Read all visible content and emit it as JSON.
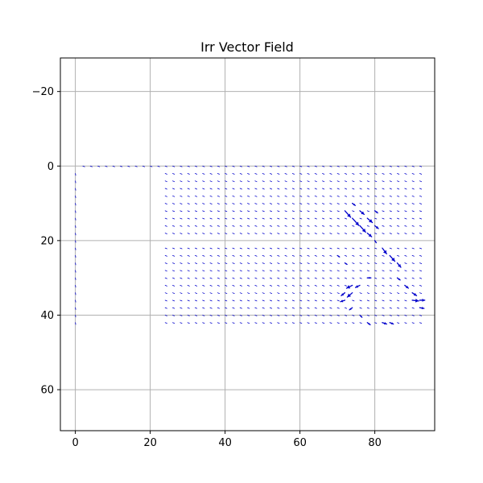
{
  "chart_data": {
    "type": "quiver",
    "title": "Irr Vector Field",
    "xlabel": "",
    "ylabel": "",
    "xlim": [
      -4,
      96
    ],
    "ylim": [
      -29,
      71
    ],
    "y_inverted": true,
    "grid": true,
    "x_ticks": [
      0,
      20,
      40,
      60,
      80
    ],
    "y_ticks": [
      -20,
      0,
      20,
      40,
      60
    ],
    "x_tick_labels": [
      "0",
      "20",
      "40",
      "60",
      "80"
    ],
    "y_tick_labels": [
      "−20",
      "0",
      "20",
      "40",
      "60"
    ],
    "arrow_color": "#0000cc",
    "grid_spacing": 2,
    "rows": [
      {
        "y": 0,
        "x_start": 2,
        "x_end": 92
      },
      {
        "y": 2,
        "x_start": 24,
        "x_end": 92
      },
      {
        "y": 4,
        "x_start": 24,
        "x_end": 92
      },
      {
        "y": 6,
        "x_start": 24,
        "x_end": 92
      },
      {
        "y": 8,
        "x_start": 24,
        "x_end": 92
      },
      {
        "y": 10,
        "x_start": 24,
        "x_end": 92
      },
      {
        "y": 12,
        "x_start": 24,
        "x_end": 92
      },
      {
        "y": 14,
        "x_start": 24,
        "x_end": 92
      },
      {
        "y": 16,
        "x_start": 24,
        "x_end": 92
      },
      {
        "y": 18,
        "x_start": 24,
        "x_end": 92
      },
      {
        "y": 22,
        "x_start": 24,
        "x_end": 92
      },
      {
        "y": 24,
        "x_start": 24,
        "x_end": 92
      },
      {
        "y": 26,
        "x_start": 24,
        "x_end": 92
      },
      {
        "y": 28,
        "x_start": 24,
        "x_end": 92
      },
      {
        "y": 30,
        "x_start": 24,
        "x_end": 92
      },
      {
        "y": 32,
        "x_start": 24,
        "x_end": 92
      },
      {
        "y": 34,
        "x_start": 24,
        "x_end": 92
      },
      {
        "y": 36,
        "x_start": 24,
        "x_end": 92
      },
      {
        "y": 38,
        "x_start": 24,
        "x_end": 92
      },
      {
        "y": 40,
        "x_start": 24,
        "x_end": 92
      },
      {
        "y": 42,
        "x_start": 24,
        "x_end": 92
      }
    ],
    "column_points": {
      "x": 0,
      "y_start": 2,
      "y_end": 42
    },
    "default_vector": [
      0.25,
      0.1
    ],
    "strong_vectors": [
      {
        "x": 72,
        "y": 12,
        "u": 0.8,
        "v": 0.9
      },
      {
        "x": 74,
        "y": 14,
        "u": 0.9,
        "v": 1.0
      },
      {
        "x": 76,
        "y": 16,
        "u": 0.8,
        "v": 0.9
      },
      {
        "x": 78,
        "y": 14,
        "u": 0.7,
        "v": 0.6
      },
      {
        "x": 76,
        "y": 12,
        "u": 0.6,
        "v": 0.5
      },
      {
        "x": 74,
        "y": 10,
        "u": 0.4,
        "v": 0.3
      },
      {
        "x": 78,
        "y": 18,
        "u": 0.6,
        "v": 0.5
      },
      {
        "x": 80,
        "y": 12,
        "u": 0.4,
        "v": 0.3
      },
      {
        "x": 80,
        "y": 16,
        "u": 0.5,
        "v": 0.4
      },
      {
        "x": 82,
        "y": 22,
        "u": 0.6,
        "v": 0.8
      },
      {
        "x": 84,
        "y": 24,
        "u": 0.7,
        "v": 0.8
      },
      {
        "x": 86,
        "y": 26,
        "u": 0.5,
        "v": 0.6
      },
      {
        "x": 86,
        "y": 30,
        "u": 0.4,
        "v": 0.3
      },
      {
        "x": 88,
        "y": 32,
        "u": 0.5,
        "v": 0.4
      },
      {
        "x": 90,
        "y": 34,
        "u": 0.6,
        "v": 0.4
      },
      {
        "x": 90,
        "y": 36,
        "u": 0.9,
        "v": 0.1
      },
      {
        "x": 92,
        "y": 36,
        "u": 0.7,
        "v": 0.0
      },
      {
        "x": 92,
        "y": 38,
        "u": 0.6,
        "v": 0.1
      },
      {
        "x": 78,
        "y": 30,
        "u": 0.5,
        "v": 0.0
      },
      {
        "x": 76,
        "y": 32,
        "u": -0.6,
        "v": 0.3
      },
      {
        "x": 74,
        "y": 32,
        "u": -0.8,
        "v": 0.4
      },
      {
        "x": 74,
        "y": 34,
        "u": -0.7,
        "v": 0.6
      },
      {
        "x": 72,
        "y": 36,
        "u": -0.6,
        "v": 0.2
      },
      {
        "x": 72,
        "y": 34,
        "u": -0.5,
        "v": 0.4
      },
      {
        "x": 74,
        "y": 38,
        "u": -0.4,
        "v": 0.3
      },
      {
        "x": 76,
        "y": 40,
        "u": 0.3,
        "v": 0.3
      },
      {
        "x": 78,
        "y": 42,
        "u": 0.4,
        "v": 0.3
      },
      {
        "x": 82,
        "y": 42,
        "u": 0.6,
        "v": 0.2
      },
      {
        "x": 84,
        "y": 42,
        "u": 0.5,
        "v": 0.2
      },
      {
        "x": 80,
        "y": 20,
        "u": 0.2,
        "v": 0.3
      },
      {
        "x": 72,
        "y": 26,
        "u": 0.3,
        "v": 0.2
      },
      {
        "x": 70,
        "y": 24,
        "u": 0.3,
        "v": 0.2
      }
    ]
  }
}
